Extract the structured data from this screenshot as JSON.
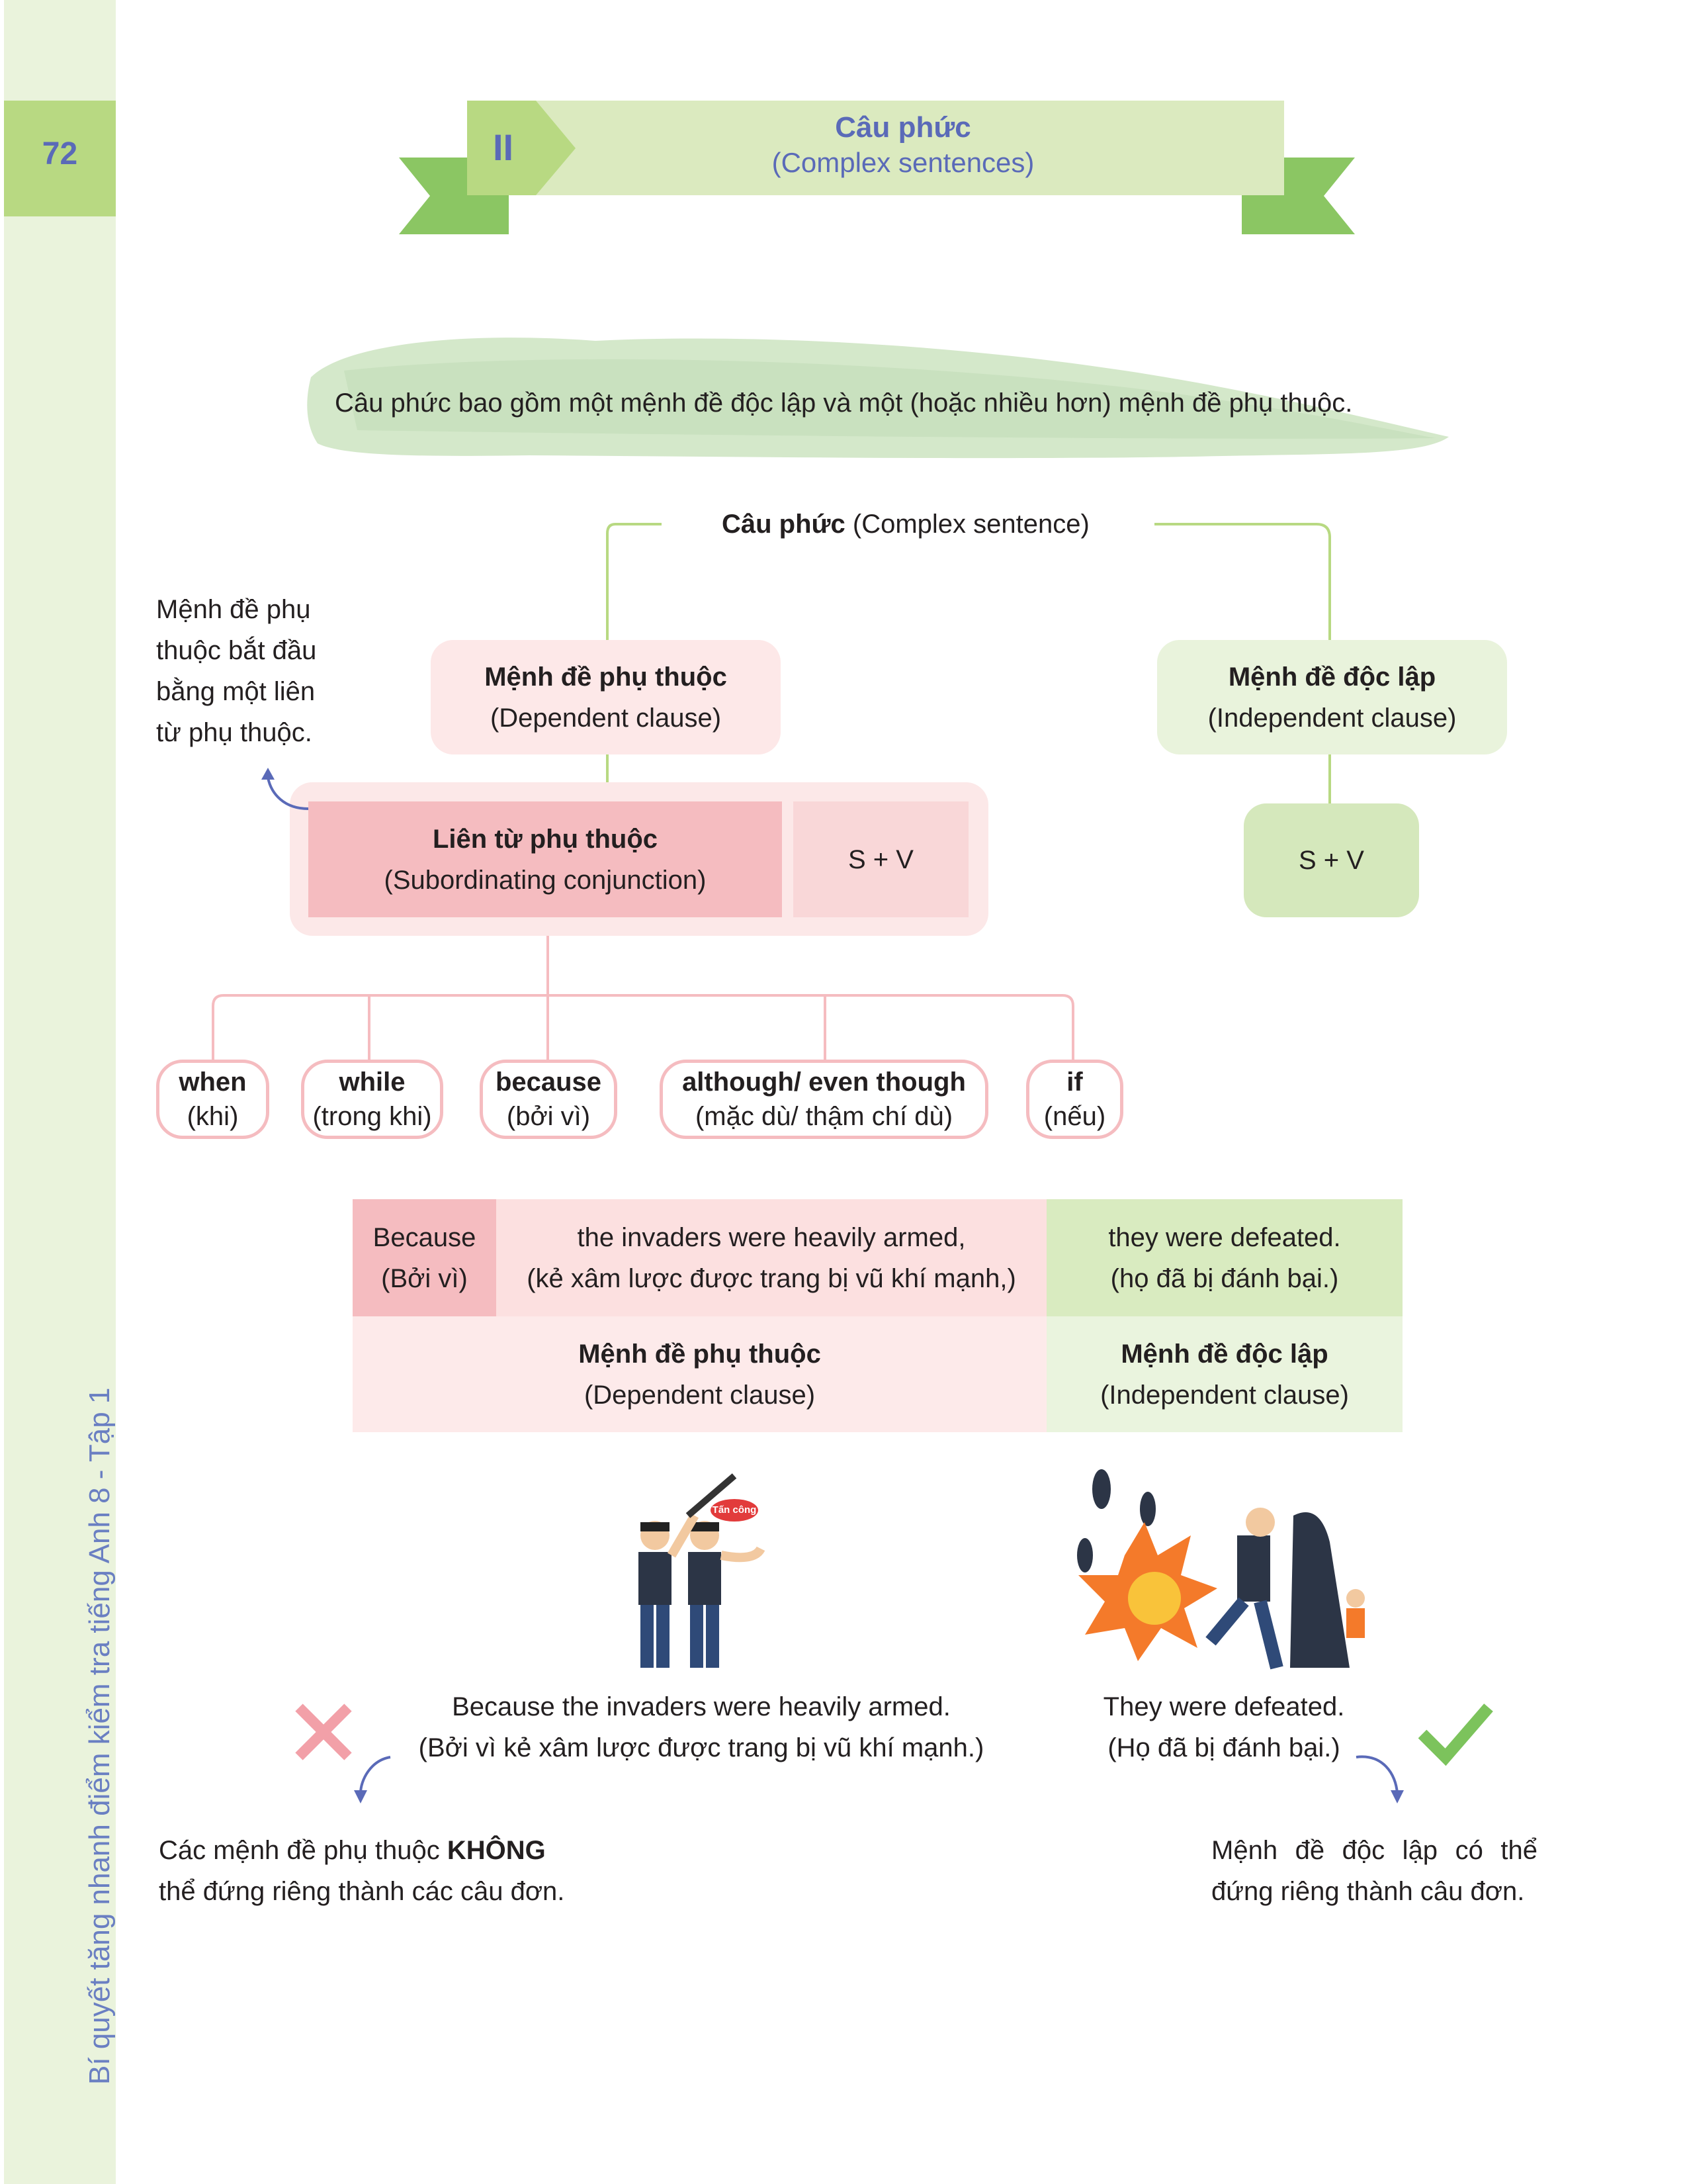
{
  "sidebar": {
    "page_number": "72",
    "book_title": "Bí quyết tăng nhanh điểm kiểm tra tiếng Anh 8 - Tập 1"
  },
  "banner": {
    "numeral": "II",
    "title": "Câu phức",
    "subtitle": "(Complex sentences)"
  },
  "definition": "Câu phức bao gồm một mệnh đề độc lập và một (hoặc nhiều hơn) mệnh đề phụ thuộc.",
  "diagram": {
    "root_bold": "Câu phức",
    "root_rest": " (Complex sentence)",
    "dependent": {
      "title": "Mệnh đề phụ thuộc",
      "subtitle": "(Dependent clause)"
    },
    "independent": {
      "title": "Mệnh đề độc lập",
      "subtitle": "(Independent clause)"
    },
    "note_lines": [
      "Mệnh đề phụ",
      "thuộc bắt đầu",
      "bằng một liên",
      "từ phụ thuộc."
    ],
    "conjunction": {
      "title": "Liên từ phụ thuộc",
      "subtitle": "(Subordinating conjunction)"
    },
    "sv_left": "S + V",
    "sv_right": "S + V",
    "conjunctions": [
      {
        "word": "when",
        "meaning": "(khi)"
      },
      {
        "word": "while",
        "meaning": "(trong khi)"
      },
      {
        "word": "because",
        "meaning": "(bởi vì)"
      },
      {
        "word": "although/ even though",
        "meaning": "(mặc dù/ thậm chí dù)"
      },
      {
        "word": "if",
        "meaning": "(nếu)"
      }
    ]
  },
  "example_table": {
    "conj": [
      "Because",
      "(Bởi vì)"
    ],
    "dep": [
      "the invaders were heavily armed,",
      "(kẻ xâm lược được trang bị vũ khí mạnh,)"
    ],
    "ind": [
      "they were defeated.",
      "(họ đã bị đánh bại.)"
    ],
    "label_dep": [
      "Mệnh đề phụ thuộc",
      "(Dependent clause)"
    ],
    "label_ind": [
      "Mệnh đề độc lập",
      "(Independent clause)"
    ]
  },
  "examples": {
    "wrong": {
      "lines": [
        "Because the invaders were heavily armed.",
        "(Bởi vì kẻ xâm lược được trang bị vũ khí mạnh.)"
      ],
      "note_pre": "Các mệnh đề phụ thuộc ",
      "note_bold": "KHÔNG",
      "note_line2": "thể đứng riêng thành các câu đơn.",
      "icon": "cross-icon",
      "color": "#f2a0a8"
    },
    "right": {
      "lines": [
        "They were defeated.",
        "(Họ đã bị đánh bại.)"
      ],
      "note_lines": [
        "Mệnh đề độc lập có thể",
        "đứng riêng thành câu đơn."
      ],
      "icon": "check-icon",
      "color": "#7cc35c"
    },
    "sign_text": "Tấn công"
  },
  "colors": {
    "accent_blue": "#5a6ab8",
    "green": "#8bc663",
    "light_green": "#dbeabf",
    "pink": "#f5bcc0",
    "light_pink": "#fce8e8"
  }
}
